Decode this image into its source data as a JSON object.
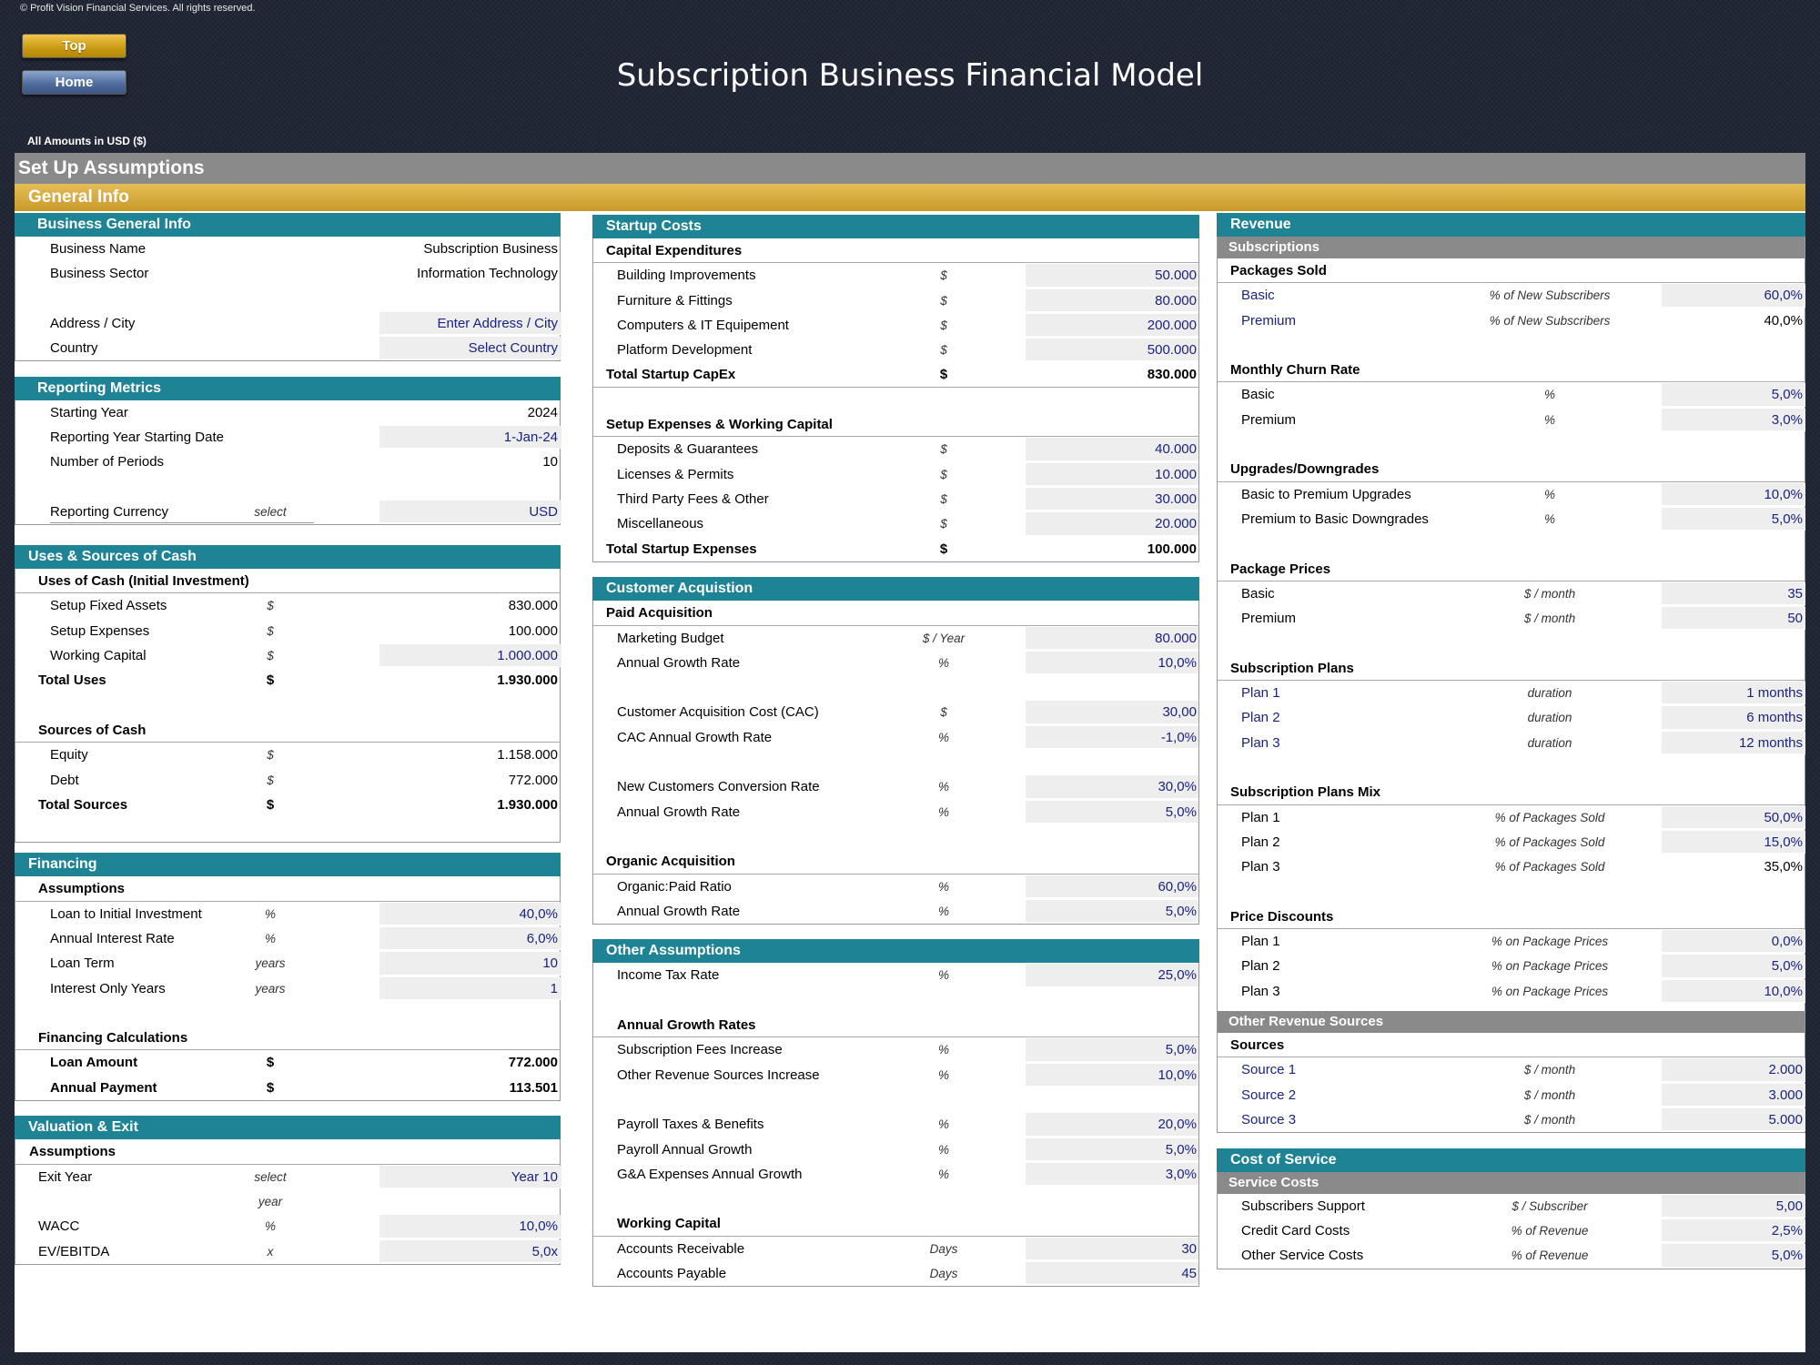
{
  "copyright": "© Profit Vision Financial Services. All rights reserved.",
  "nav": {
    "top": "Top",
    "home": "Home"
  },
  "title": "Subscription Business Financial Model",
  "amounts_note": "All Amounts in  USD ($)",
  "setup_title": "Set Up Assumptions",
  "general_title": "General Info",
  "colors": {
    "teal": "#1f8396",
    "gold": "#d4a93a",
    "gray": "#8a8a8a",
    "input_text": "#1a237e",
    "input_bg": "#eeeeee"
  },
  "left": {
    "business_head": "Business General Info",
    "business": [
      {
        "label": "Business Name",
        "value": "Subscription Business"
      },
      {
        "label": "Business Sector",
        "value": "Information Technology"
      },
      {
        "label": "Address / City",
        "value": "Enter Address / City"
      },
      {
        "label": "Country",
        "value": "Select Country"
      }
    ],
    "reporting_head": "Reporting Metrics",
    "reporting": [
      {
        "label": "Starting Year",
        "value": "2024"
      },
      {
        "label": "Reporting Year Starting Date",
        "value": "1-Jan-24"
      },
      {
        "label": "Number of Periods",
        "value": "10"
      },
      {
        "label": "Reporting Currency",
        "unit": "select",
        "value": "USD"
      }
    ],
    "uses_head": "Uses & Sources of Cash",
    "uses_sub": "Uses of Cash (Initial Investment)",
    "uses": [
      {
        "label": "Setup Fixed Assets",
        "unit": "$",
        "value": "830.000"
      },
      {
        "label": "Setup Expenses",
        "unit": "$",
        "value": "100.000"
      },
      {
        "label": "Working Capital",
        "unit": "$",
        "value": "1.000.000"
      }
    ],
    "uses_total": {
      "label": "Total Uses",
      "unit": "$",
      "value": "1.930.000"
    },
    "sources_sub": "Sources of Cash",
    "sources": [
      {
        "label": "Equity",
        "unit": "$",
        "value": "1.158.000"
      },
      {
        "label": "Debt",
        "unit": "$",
        "value": "772.000"
      }
    ],
    "sources_total": {
      "label": "Total Sources",
      "unit": "$",
      "value": "1.930.000"
    },
    "financing_head": "Financing",
    "financing_sub": "Assumptions",
    "financing": [
      {
        "label": "Loan to Initial Investment",
        "unit": "%",
        "value": "40,0%"
      },
      {
        "label": "Annual Interest Rate",
        "unit": "%",
        "value": "6,0%"
      },
      {
        "label": "Loan Term",
        "unit": "years",
        "value": "10"
      },
      {
        "label": "Interest Only Years",
        "unit": "years",
        "value": "1"
      }
    ],
    "fincalc_sub": "Financing Calculations",
    "fincalc": [
      {
        "label": "Loan Amount",
        "unit": "$",
        "value": "772.000"
      },
      {
        "label": "Annual Payment",
        "unit": "$",
        "value": "113.501"
      }
    ],
    "valuation_head": "Valuation & Exit",
    "valuation_sub": "Assumptions",
    "exit": {
      "label": "Exit Year",
      "unit": "select year",
      "value": "Year 10"
    },
    "valuation": [
      {
        "label": "WACC",
        "unit": "%",
        "value": "10,0%"
      },
      {
        "label": "EV/EBITDA",
        "unit": "x",
        "value": "5,0x"
      }
    ]
  },
  "mid": {
    "startup_head": "Startup Costs",
    "capex_sub": "Capital Expenditures",
    "capex": [
      {
        "label": "Building Improvements",
        "unit": "$",
        "value": "50.000"
      },
      {
        "label": "Furniture & Fittings",
        "unit": "$",
        "value": "80.000"
      },
      {
        "label": "Computers & IT Equipement",
        "unit": "$",
        "value": "200.000"
      },
      {
        "label": "Platform Development",
        "unit": "$",
        "value": "500.000"
      }
    ],
    "capex_total": {
      "label": "Total Startup CapEx",
      "unit": "$",
      "value": "830.000"
    },
    "setup_sub": "Setup Expenses & Working Capital",
    "setup": [
      {
        "label": "Deposits & Guarantees",
        "unit": "$",
        "value": "40.000"
      },
      {
        "label": "Licenses & Permits",
        "unit": "$",
        "value": "10.000"
      },
      {
        "label": "Third Party Fees & Other",
        "unit": "$",
        "value": "30.000"
      },
      {
        "label": "Miscellaneous",
        "unit": "$",
        "value": "20.000"
      }
    ],
    "setup_total": {
      "label": "Total Startup Expenses",
      "unit": "$",
      "value": "100.000"
    },
    "acq_head": "Customer Acquistion",
    "paid_sub": "Paid Acquisition",
    "paid1": [
      {
        "label": "Marketing Budget",
        "unit": "$ / Year",
        "value": "80.000"
      },
      {
        "label": "Annual Growth Rate",
        "unit": "%",
        "value": "10,0%"
      }
    ],
    "paid2": [
      {
        "label": "Customer Acquisition Cost (CAC)",
        "unit": "$",
        "value": "30,00"
      },
      {
        "label": "CAC Annual Growth Rate",
        "unit": "%",
        "value": "-1,0%"
      }
    ],
    "paid3": [
      {
        "label": "New Customers Conversion Rate",
        "unit": "%",
        "value": "30,0%"
      },
      {
        "label": "Annual Growth Rate",
        "unit": "%",
        "value": "5,0%"
      }
    ],
    "organic_sub": "Organic Acquisition",
    "organic": [
      {
        "label": "Organic:Paid Ratio",
        "unit": "%",
        "value": "60,0%"
      },
      {
        "label": "Annual Growth Rate",
        "unit": "%",
        "value": "5,0%"
      }
    ],
    "other_head": "Other Assumptions",
    "tax": {
      "label": "Income Tax Rate",
      "unit": "%",
      "value": "25,0%"
    },
    "growth_sub": "Annual Growth Rates",
    "growth1": [
      {
        "label": "Subscription Fees Increase",
        "unit": "%",
        "value": "5,0%"
      },
      {
        "label": "Other Revenue Sources Increase",
        "unit": "%",
        "value": "10,0%"
      }
    ],
    "growth2": [
      {
        "label": "Payroll Taxes & Benefits",
        "unit": "%",
        "value": "20,0%"
      },
      {
        "label": "Payroll Annual Growth",
        "unit": "%",
        "value": "5,0%"
      },
      {
        "label": "G&A Expenses Annual Growth",
        "unit": "%",
        "value": "3,0%"
      }
    ],
    "wc_sub": "Working Capital",
    "wc": [
      {
        "label": "Accounts Receivable",
        "unit": "Days",
        "value": "30"
      },
      {
        "label": "Accounts Payable",
        "unit": "Days",
        "value": "45"
      }
    ]
  },
  "right": {
    "revenue_head": "Revenue",
    "subs_gray": "Subscriptions",
    "packages_sub": "Packages Sold",
    "packages": [
      {
        "label": "Basic",
        "unit": "% of New Subscribers",
        "value": "60,0%"
      },
      {
        "label": "Premium",
        "unit": "% of New Subscribers",
        "value": "40,0%"
      }
    ],
    "churn_sub": "Monthly Churn Rate",
    "churn": [
      {
        "label": "Basic",
        "unit": "%",
        "value": "5,0%"
      },
      {
        "label": "Premium",
        "unit": "%",
        "value": "3,0%"
      }
    ],
    "updown_sub": "Upgrades/Downgrades",
    "updown": [
      {
        "label": "Basic to Premium Upgrades",
        "unit": "%",
        "value": "10,0%"
      },
      {
        "label": "Premium to Basic Downgrades",
        "unit": "%",
        "value": "5,0%"
      }
    ],
    "prices_sub": "Package Prices",
    "prices": [
      {
        "label": "Basic",
        "unit": "$ / month",
        "value": "35"
      },
      {
        "label": "Premium",
        "unit": "$ / month",
        "value": "50"
      }
    ],
    "plans_sub": "Subscription Plans",
    "plans": [
      {
        "label": "Plan 1",
        "unit": "duration",
        "value": "1 months"
      },
      {
        "label": "Plan 2",
        "unit": "duration",
        "value": "6 months"
      },
      {
        "label": "Plan 3",
        "unit": "duration",
        "value": "12 months"
      }
    ],
    "mix_sub": "Subscription Plans Mix",
    "mix": [
      {
        "label": "Plan 1",
        "unit": "% of Packages Sold",
        "value": "50,0%"
      },
      {
        "label": "Plan 2",
        "unit": "% of Packages Sold",
        "value": "15,0%"
      },
      {
        "label": "Plan 3",
        "unit": "% of Packages Sold",
        "value": "35,0%"
      }
    ],
    "discounts_sub": "Price Discounts",
    "discounts": [
      {
        "label": "Plan 1",
        "unit": "% on Package Prices",
        "value": "0,0%"
      },
      {
        "label": "Plan 2",
        "unit": "% on Package Prices",
        "value": "5,0%"
      },
      {
        "label": "Plan 3",
        "unit": "% on Package Prices",
        "value": "10,0%"
      }
    ],
    "other_gray": "Other Revenue Sources",
    "sources_sub": "Sources",
    "sources": [
      {
        "label": "Source 1",
        "unit": "$ / month",
        "value": "2.000"
      },
      {
        "label": "Source 2",
        "unit": "$ / month",
        "value": "3.000"
      },
      {
        "label": "Source 3",
        "unit": "$ / month",
        "value": "5.000"
      }
    ],
    "cos_head": "Cost of Service",
    "service_gray": "Service Costs",
    "service": [
      {
        "label": "Subscribers Support",
        "unit": "$ / Subscriber",
        "value": "5,00"
      },
      {
        "label": "Credit Card Costs",
        "unit": "% of Revenue",
        "value": "2,5%"
      },
      {
        "label": "Other Service Costs",
        "unit": "% of Revenue",
        "value": "5,0%"
      }
    ]
  }
}
